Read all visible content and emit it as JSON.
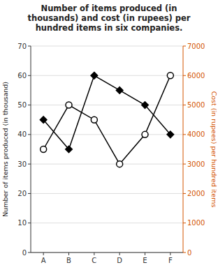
{
  "chart_data": {
    "type": "line",
    "title": "Number of items produced (in\nthousands) and cost (in rupees) per\nhundred items in six companies.",
    "categories": [
      "A",
      "B",
      "C",
      "D",
      "E",
      "F"
    ],
    "series": [
      {
        "values": [
          45,
          35,
          60,
          55,
          50,
          40
        ],
        "color": "black",
        "marker": "diamond"
      },
      {
        "values": [
          35,
          50,
          45,
          30,
          40,
          60
        ],
        "color": "black",
        "marker": "open-circle"
      }
    ],
    "ylim": [
      0,
      70
    ],
    "yticks": [
      0,
      10,
      20,
      30,
      40,
      50,
      60,
      70
    ],
    "y2lim": [
      0,
      7000
    ],
    "y2ticks": [
      0,
      1000,
      2000,
      3000,
      4000,
      5000,
      6000,
      7000
    ],
    "ylabel": "Number of items produced (in thousand)",
    "y2label": "Cost (in rupees) per hundred items",
    "grid": true
  }
}
